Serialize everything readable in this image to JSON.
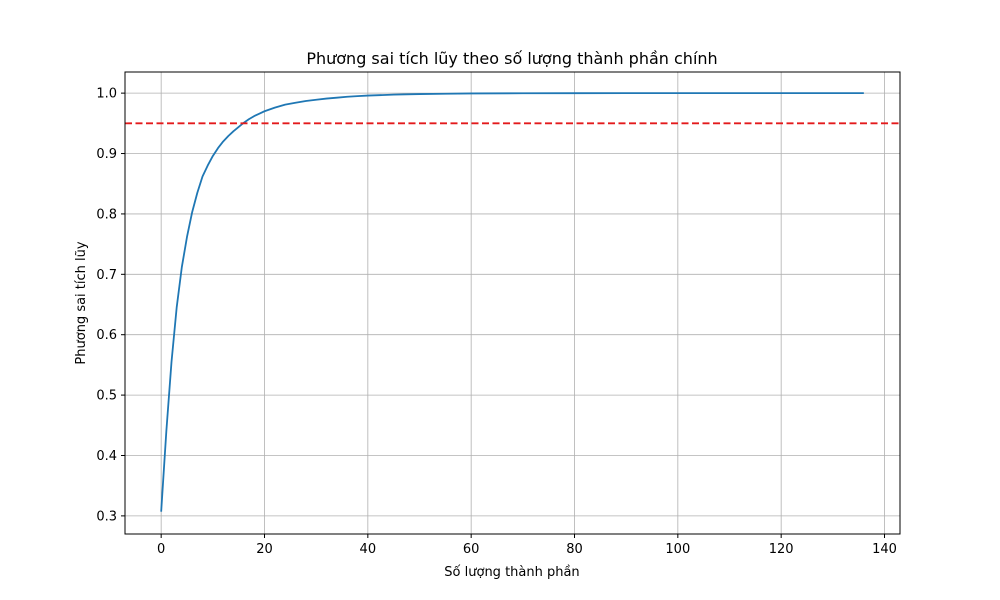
{
  "chart_data": {
    "type": "line",
    "title": "Phương sai tích lũy theo số lượng thành phần chính",
    "xlabel": "Số lượng thành phần",
    "ylabel": "Phương sai tích lũy",
    "xlim": [
      -7,
      143
    ],
    "ylim": [
      0.27,
      1.035
    ],
    "xticks": [
      0,
      20,
      40,
      60,
      80,
      100,
      120,
      140
    ],
    "yticks": [
      0.3,
      0.4,
      0.5,
      0.6,
      0.7,
      0.8,
      0.9,
      1.0
    ],
    "grid": true,
    "series": [
      {
        "color": "#1f77b4",
        "x": [
          0,
          1,
          2,
          3,
          4,
          5,
          6,
          7,
          8,
          9,
          10,
          11,
          12,
          13,
          14,
          15,
          16,
          17,
          18,
          19,
          20,
          22,
          24,
          26,
          28,
          30,
          32,
          34,
          36,
          38,
          40,
          45,
          50,
          55,
          60,
          70,
          80,
          90,
          100,
          110,
          120,
          130,
          136
        ],
        "y": [
          0.307,
          0.44,
          0.555,
          0.645,
          0.712,
          0.762,
          0.803,
          0.835,
          0.862,
          0.88,
          0.896,
          0.909,
          0.92,
          0.929,
          0.937,
          0.944,
          0.951,
          0.957,
          0.962,
          0.966,
          0.97,
          0.976,
          0.981,
          0.984,
          0.987,
          0.989,
          0.991,
          0.9925,
          0.994,
          0.995,
          0.996,
          0.9975,
          0.9985,
          0.999,
          0.9995,
          0.9998,
          0.9999,
          1.0,
          1.0,
          1.0,
          1.0,
          1.0,
          1.0
        ]
      }
    ],
    "reference_line": {
      "y": 0.95,
      "color": "#e31a1c",
      "style": "dashed"
    }
  }
}
